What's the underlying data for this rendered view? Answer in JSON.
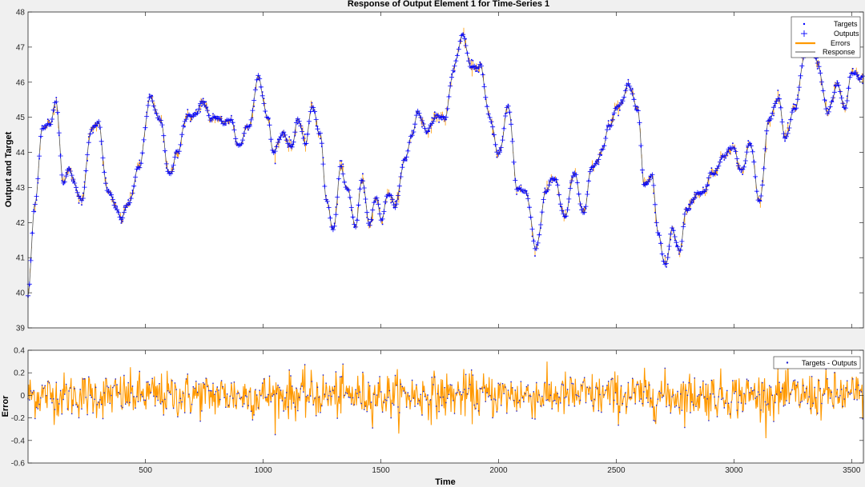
{
  "colors": {
    "background": "#f0f0f0",
    "axes_background": "#ffffff",
    "targets": "#0000ff",
    "outputs": "#0000ff",
    "errors": "#ff9900",
    "response": "#555555",
    "residual_points": "#2222cc"
  },
  "chart_data": [
    {
      "type": "line",
      "title": "Response of Output Element 1 for Time-Series 1",
      "xlabel": "",
      "ylabel": "Output and Target",
      "xlim": [
        1,
        3550
      ],
      "ylim": [
        39,
        48
      ],
      "yticks": [
        "39",
        "40",
        "41",
        "42",
        "43",
        "44",
        "45",
        "46",
        "47",
        "48"
      ],
      "grid": false,
      "legend": [
        "Targets",
        "Outputs",
        "Errors",
        "Response"
      ],
      "legend_position": "top-right",
      "series": [
        {
          "name": "Response",
          "x": [
            1,
            30,
            60,
            90,
            120,
            150,
            175,
            200,
            230,
            270,
            300,
            340,
            370,
            400,
            430,
            470,
            520,
            560,
            600,
            640,
            670,
            700,
            740,
            780,
            820,
            860,
            900,
            940,
            980,
            1020,
            1040,
            1080,
            1120,
            1150,
            1180,
            1210,
            1240,
            1270,
            1300,
            1330,
            1360,
            1390,
            1420,
            1450,
            1480,
            1500,
            1530,
            1560,
            1600,
            1630,
            1660,
            1700,
            1740,
            1770,
            1810,
            1850,
            1880,
            1920,
            1960,
            2000,
            2040,
            2080,
            2120,
            2160,
            2200,
            2240,
            2280,
            2320,
            2360,
            2400,
            2440,
            2470,
            2510,
            2550,
            2590,
            2620,
            2650,
            2680,
            2710,
            2740,
            2770,
            2800,
            2830,
            2870,
            2910,
            2950,
            2990,
            3030,
            3070,
            3110,
            3150,
            3190,
            3220,
            3260,
            3300,
            3330,
            3360,
            3400,
            3440,
            3470,
            3500,
            3530,
            3550
          ],
          "values": [
            39.9,
            42.5,
            44.6,
            44.8,
            45.4,
            43.2,
            43.5,
            43.1,
            42.6,
            44.7,
            44.8,
            42.9,
            42.5,
            42.1,
            42.6,
            43.5,
            45.5,
            45.0,
            43.4,
            44.0,
            45.0,
            45.0,
            45.4,
            45.0,
            44.9,
            44.9,
            44.2,
            44.8,
            46.1,
            45.0,
            44.0,
            44.5,
            44.2,
            44.9,
            44.3,
            45.3,
            44.6,
            42.6,
            41.8,
            43.6,
            42.9,
            41.9,
            43.2,
            42.0,
            42.7,
            42.1,
            42.8,
            42.5,
            43.7,
            44.5,
            45.1,
            44.6,
            45.1,
            44.9,
            46.4,
            47.4,
            46.4,
            46.5,
            45.1,
            43.9,
            45.3,
            43.0,
            42.8,
            41.2,
            42.9,
            43.3,
            42.1,
            43.4,
            42.3,
            43.6,
            44.0,
            44.8,
            45.3,
            45.9,
            45.3,
            43.0,
            43.4,
            41.6,
            40.8,
            41.8,
            41.2,
            42.4,
            42.7,
            42.9,
            43.4,
            43.8,
            44.2,
            43.5,
            44.2,
            42.6,
            45.0,
            45.5,
            44.4,
            45.3,
            46.7,
            47.2,
            46.4,
            45.1,
            46.0,
            45.2,
            46.3,
            46.1,
            46.2
          ]
        }
      ]
    },
    {
      "type": "line",
      "title": "",
      "xlabel": "Time",
      "ylabel": "Error",
      "xlim": [
        1,
        3550
      ],
      "ylim": [
        -0.6,
        0.4
      ],
      "xticks": [
        "500",
        "1000",
        "1500",
        "2000",
        "2500",
        "3000",
        "3500"
      ],
      "yticks": [
        "-0.6",
        "-0.4",
        "-0.2",
        "0",
        "0.2",
        "0.4"
      ],
      "grid": false,
      "legend": [
        "Targets - Outputs"
      ],
      "legend_position": "top-right",
      "error_amplitude": 0.1
    }
  ]
}
